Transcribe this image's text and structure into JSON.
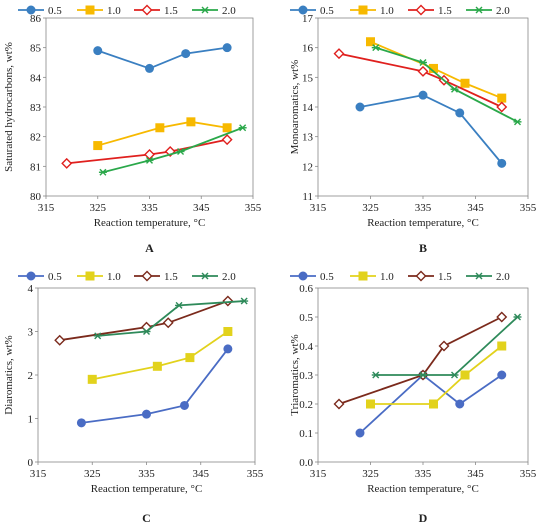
{
  "panels": [
    "A",
    "B",
    "C",
    "D"
  ],
  "chart_data": [
    {
      "type": "line",
      "panel": "A",
      "xlabel": "Reaction temperature, °C",
      "ylabel": "Saturated hydrocarbons, wt%",
      "xlim": [
        315,
        355
      ],
      "ylim": [
        80,
        86
      ],
      "xticks": [
        315,
        325,
        335,
        345,
        355
      ],
      "yticks": [
        80,
        81,
        82,
        83,
        84,
        85,
        86
      ],
      "legend": "top",
      "series": [
        {
          "name": "0.5",
          "color": "#3a7fc1",
          "marker": "circle",
          "x": [
            325,
            335,
            342,
            350
          ],
          "y": [
            84.9,
            84.3,
            84.8,
            85.0
          ]
        },
        {
          "name": "1.0",
          "color": "#f7b900",
          "marker": "square",
          "x": [
            325,
            337,
            343,
            350
          ],
          "y": [
            81.7,
            82.3,
            82.5,
            82.3
          ]
        },
        {
          "name": "1.5",
          "color": "#e0201e",
          "marker": "diamond",
          "x": [
            319,
            335,
            339,
            350
          ],
          "y": [
            81.1,
            81.4,
            81.5,
            81.9
          ]
        },
        {
          "name": "2.0",
          "color": "#2aa84a",
          "marker": "star",
          "x": [
            326,
            335,
            341,
            353
          ],
          "y": [
            80.8,
            81.2,
            81.5,
            82.3
          ]
        }
      ]
    },
    {
      "type": "line",
      "panel": "B",
      "xlabel": "Reaction temperature, °C",
      "ylabel": "Monoaromatics, wt%",
      "xlim": [
        315,
        355
      ],
      "ylim": [
        11,
        17
      ],
      "xticks": [
        315,
        325,
        335,
        345,
        355
      ],
      "yticks": [
        11,
        12,
        13,
        14,
        15,
        16,
        17
      ],
      "legend": "top",
      "series": [
        {
          "name": "0.5",
          "color": "#3a7fc1",
          "marker": "circle",
          "x": [
            323,
            335,
            342,
            350
          ],
          "y": [
            14.0,
            14.4,
            13.8,
            12.1
          ]
        },
        {
          "name": "1.0",
          "color": "#f7b900",
          "marker": "square",
          "x": [
            325,
            337,
            343,
            350
          ],
          "y": [
            16.2,
            15.3,
            14.8,
            14.3
          ]
        },
        {
          "name": "1.5",
          "color": "#e0201e",
          "marker": "diamond",
          "x": [
            319,
            335,
            339,
            350
          ],
          "y": [
            15.8,
            15.2,
            14.9,
            14.0
          ]
        },
        {
          "name": "2.0",
          "color": "#2aa84a",
          "marker": "star",
          "x": [
            326,
            335,
            341,
            353
          ],
          "y": [
            16.0,
            15.5,
            14.6,
            13.5
          ]
        }
      ]
    },
    {
      "type": "line",
      "panel": "C",
      "xlabel": "Reaction temperature, °C",
      "ylabel": "Diaromatics, wt%",
      "xlim": [
        315,
        355
      ],
      "ylim": [
        0,
        4
      ],
      "xticks": [
        315,
        325,
        335,
        345,
        355
      ],
      "yticks": [
        0,
        1,
        2,
        3,
        4
      ],
      "legend": "top",
      "series": [
        {
          "name": "0.5",
          "color": "#4a6cc4",
          "marker": "circle",
          "x": [
            323,
            335,
            342,
            350
          ],
          "y": [
            0.9,
            1.1,
            1.3,
            2.6
          ]
        },
        {
          "name": "1.0",
          "color": "#e2d21c",
          "marker": "square",
          "x": [
            325,
            337,
            343,
            350
          ],
          "y": [
            1.9,
            2.2,
            2.4,
            3.0
          ]
        },
        {
          "name": "1.5",
          "color": "#7b2a1c",
          "marker": "diamond",
          "x": [
            319,
            335,
            339,
            350
          ],
          "y": [
            2.8,
            3.1,
            3.2,
            3.7
          ]
        },
        {
          "name": "2.0",
          "color": "#2e8a5a",
          "marker": "star",
          "x": [
            326,
            335,
            341,
            353
          ],
          "y": [
            2.9,
            3.0,
            3.6,
            3.7
          ]
        }
      ]
    },
    {
      "type": "line",
      "panel": "D",
      "xlabel": "Reaction temperature, °C",
      "ylabel": "Triaromatics, wt%",
      "xlim": [
        315,
        355
      ],
      "ylim": [
        0,
        0.6
      ],
      "xticks": [
        315,
        325,
        335,
        345,
        355
      ],
      "yticks": [
        0,
        0.1,
        0.2,
        0.3,
        0.4,
        0.5,
        0.6
      ],
      "ytickLabels": [
        "0.0",
        "0.1",
        "0.2",
        "0.3",
        "0.4",
        "0.5",
        "0.6"
      ],
      "legend": "top",
      "series": [
        {
          "name": "0.5",
          "color": "#4a6cc4",
          "marker": "circle",
          "x": [
            323,
            335,
            342,
            350
          ],
          "y": [
            0.1,
            0.3,
            0.2,
            0.3
          ]
        },
        {
          "name": "1.0",
          "color": "#e2d21c",
          "marker": "square",
          "x": [
            325,
            337,
            343,
            350
          ],
          "y": [
            0.2,
            0.2,
            0.3,
            0.4
          ]
        },
        {
          "name": "1.5",
          "color": "#7b2a1c",
          "marker": "diamond",
          "x": [
            319,
            335,
            339,
            350
          ],
          "y": [
            0.2,
            0.3,
            0.4,
            0.5
          ]
        },
        {
          "name": "2.0",
          "color": "#2e8a5a",
          "marker": "star",
          "x": [
            326,
            335,
            341,
            353
          ],
          "y": [
            0.3,
            0.3,
            0.3,
            0.5
          ]
        }
      ]
    }
  ]
}
